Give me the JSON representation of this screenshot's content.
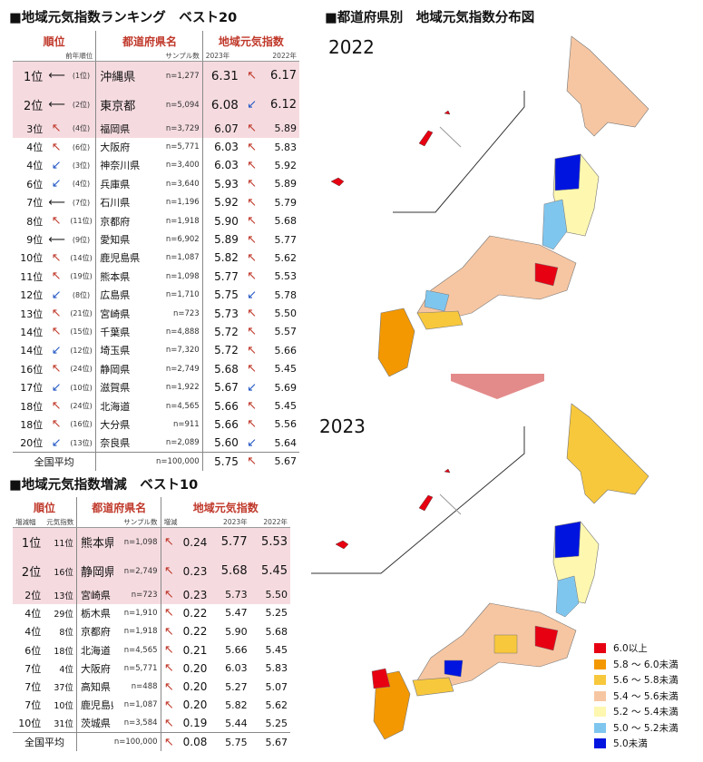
{
  "ranking": {
    "title": "■地域元気指数ランキング　ベスト20",
    "headers": {
      "rank": "順位",
      "pref": "都道府県名",
      "index": "地域元気指数"
    },
    "subheaders": {
      "prev_rank": "前年順位",
      "sample": "サンプル数",
      "y2023": "2023年",
      "y2022": "2022年"
    },
    "rows": [
      {
        "rank": "1位",
        "trend": "flat",
        "prev": "(1位)",
        "pref": "沖縄県",
        "n": "n=1,277",
        "v23": "6.31",
        "t2": "up",
        "v22": "6.17"
      },
      {
        "rank": "2位",
        "trend": "flat",
        "prev": "(2位)",
        "pref": "東京都",
        "n": "n=5,094",
        "v23": "6.08",
        "t2": "down",
        "v22": "6.12"
      },
      {
        "rank": "3位",
        "trend": "up",
        "prev": "(4位)",
        "pref": "福岡県",
        "n": "n=3,729",
        "v23": "6.07",
        "t2": "up",
        "v22": "5.89"
      },
      {
        "rank": "4位",
        "trend": "up",
        "prev": "(6位)",
        "pref": "大阪府",
        "n": "n=5,771",
        "v23": "6.03",
        "t2": "up",
        "v22": "5.83"
      },
      {
        "rank": "4位",
        "trend": "down",
        "prev": "(3位)",
        "pref": "神奈川県",
        "n": "n=3,400",
        "v23": "6.03",
        "t2": "up",
        "v22": "5.92"
      },
      {
        "rank": "6位",
        "trend": "down",
        "prev": "(4位)",
        "pref": "兵庫県",
        "n": "n=3,640",
        "v23": "5.93",
        "t2": "up",
        "v22": "5.89"
      },
      {
        "rank": "7位",
        "trend": "flat",
        "prev": "(7位)",
        "pref": "石川県",
        "n": "n=1,196",
        "v23": "5.92",
        "t2": "up",
        "v22": "5.79"
      },
      {
        "rank": "8位",
        "trend": "up",
        "prev": "(11位)",
        "pref": "京都府",
        "n": "n=1,918",
        "v23": "5.90",
        "t2": "up",
        "v22": "5.68"
      },
      {
        "rank": "9位",
        "trend": "flat",
        "prev": "(9位)",
        "pref": "愛知県",
        "n": "n=6,902",
        "v23": "5.89",
        "t2": "up",
        "v22": "5.77"
      },
      {
        "rank": "10位",
        "trend": "up",
        "prev": "(14位)",
        "pref": "鹿児島県",
        "n": "n=1,087",
        "v23": "5.82",
        "t2": "up",
        "v22": "5.62"
      },
      {
        "rank": "11位",
        "trend": "up",
        "prev": "(19位)",
        "pref": "熊本県",
        "n": "n=1,098",
        "v23": "5.77",
        "t2": "up",
        "v22": "5.53"
      },
      {
        "rank": "12位",
        "trend": "down",
        "prev": "(8位)",
        "pref": "広島県",
        "n": "n=1,710",
        "v23": "5.75",
        "t2": "down",
        "v22": "5.78"
      },
      {
        "rank": "13位",
        "trend": "up",
        "prev": "(21位)",
        "pref": "宮崎県",
        "n": "n=723",
        "v23": "5.73",
        "t2": "up",
        "v22": "5.50"
      },
      {
        "rank": "14位",
        "trend": "up",
        "prev": "(15位)",
        "pref": "千葉県",
        "n": "n=4,888",
        "v23": "5.72",
        "t2": "up",
        "v22": "5.57"
      },
      {
        "rank": "14位",
        "trend": "down",
        "prev": "(12位)",
        "pref": "埼玉県",
        "n": "n=7,320",
        "v23": "5.72",
        "t2": "up",
        "v22": "5.66"
      },
      {
        "rank": "16位",
        "trend": "up",
        "prev": "(24位)",
        "pref": "静岡県",
        "n": "n=2,749",
        "v23": "5.68",
        "t2": "up",
        "v22": "5.45"
      },
      {
        "rank": "17位",
        "trend": "down",
        "prev": "(10位)",
        "pref": "滋賀県",
        "n": "n=1,922",
        "v23": "5.67",
        "t2": "down",
        "v22": "5.69"
      },
      {
        "rank": "18位",
        "trend": "up",
        "prev": "(24位)",
        "pref": "北海道",
        "n": "n=4,565",
        "v23": "5.66",
        "t2": "up",
        "v22": "5.45"
      },
      {
        "rank": "18位",
        "trend": "up",
        "prev": "(16位)",
        "pref": "大分県",
        "n": "n=911",
        "v23": "5.66",
        "t2": "up",
        "v22": "5.56"
      },
      {
        "rank": "20位",
        "trend": "down",
        "prev": "(13位)",
        "pref": "奈良県",
        "n": "n=2,089",
        "v23": "5.60",
        "t2": "down",
        "v22": "5.64"
      }
    ],
    "average": {
      "label": "全国平均",
      "n": "n=100,000",
      "v23": "5.75",
      "t2": "up",
      "v22": "5.67"
    }
  },
  "change": {
    "title": "■地域元気指数増減　ベスト10",
    "headers": {
      "rank": "順位",
      "pref": "都道府県名",
      "index": "地域元気指数"
    },
    "subheaders": {
      "change_rank": "増減幅",
      "index_rank": "元気指数",
      "sample": "サンプル数",
      "diff": "増減",
      "y2023": "2023年",
      "y2022": "2022年"
    },
    "rows": [
      {
        "rank": "1位",
        "irank": "11位",
        "pref": "熊本県",
        "n": "n=1,098",
        "diff": "0.24",
        "v23": "5.77",
        "v22": "5.53"
      },
      {
        "rank": "2位",
        "irank": "16位",
        "pref": "静岡県",
        "n": "n=2,749",
        "diff": "0.23",
        "v23": "5.68",
        "v22": "5.45"
      },
      {
        "rank": "2位",
        "irank": "13位",
        "pref": "宮崎県",
        "n": "n=723",
        "diff": "0.23",
        "v23": "5.73",
        "v22": "5.50"
      },
      {
        "rank": "4位",
        "irank": "29位",
        "pref": "栃木県",
        "n": "n=1,910",
        "diff": "0.22",
        "v23": "5.47",
        "v22": "5.25"
      },
      {
        "rank": "4位",
        "irank": "8位",
        "pref": "京都府",
        "n": "n=1,918",
        "diff": "0.22",
        "v23": "5.90",
        "v22": "5.68"
      },
      {
        "rank": "6位",
        "irank": "18位",
        "pref": "北海道",
        "n": "n=4,565",
        "diff": "0.21",
        "v23": "5.66",
        "v22": "5.45"
      },
      {
        "rank": "7位",
        "irank": "4位",
        "pref": "大阪府",
        "n": "n=5,771",
        "diff": "0.20",
        "v23": "6.03",
        "v22": "5.83"
      },
      {
        "rank": "7位",
        "irank": "37位",
        "pref": "高知県",
        "n": "n=488",
        "diff": "0.20",
        "v23": "5.27",
        "v22": "5.07"
      },
      {
        "rank": "7位",
        "irank": "10位",
        "pref": "鹿児島県",
        "n": "n=1,087",
        "diff": "0.20",
        "v23": "5.82",
        "v22": "5.62"
      },
      {
        "rank": "10位",
        "irank": "31位",
        "pref": "茨城県",
        "n": "n=3,584",
        "diff": "0.19",
        "v23": "5.44",
        "v22": "5.25"
      }
    ],
    "average": {
      "label": "全国平均",
      "n": "n=100,000",
      "diff": "0.08",
      "v23": "5.75",
      "v22": "5.67"
    }
  },
  "map": {
    "title": "■都道府県別　地域元気指数分布図",
    "year_top": "2022",
    "year_bottom": "2023",
    "legend": [
      {
        "label": "6.0以上",
        "color": "#e60012"
      },
      {
        "label": "5.8 ～ 6.0未満",
        "color": "#f39800"
      },
      {
        "label": "5.6 ～ 5.8未満",
        "color": "#f8c83c"
      },
      {
        "label": "5.4 ～ 5.6未満",
        "color": "#f6c6a2"
      },
      {
        "label": "5.2 ～ 5.4未満",
        "color": "#fdf7b0"
      },
      {
        "label": "5.0 ～ 5.2未満",
        "color": "#7fc6ef"
      },
      {
        "label": "5.0未満",
        "color": "#0014e0"
      }
    ],
    "arrow_color": "#e38b8b"
  },
  "chart_data": [
    {
      "type": "table",
      "title": "■地域元気指数ランキング　ベスト20",
      "columns": [
        "順位",
        "前年順位",
        "都道府県名",
        "サンプル数",
        "2023年",
        "2022年"
      ],
      "note": "see ranking.rows"
    },
    {
      "type": "table",
      "title": "■地域元気指数増減　ベスト10",
      "columns": [
        "増減幅",
        "元気指数",
        "都道府県名",
        "サンプル数",
        "増減",
        "2023年",
        "2022年"
      ],
      "note": "see change.rows"
    }
  ]
}
